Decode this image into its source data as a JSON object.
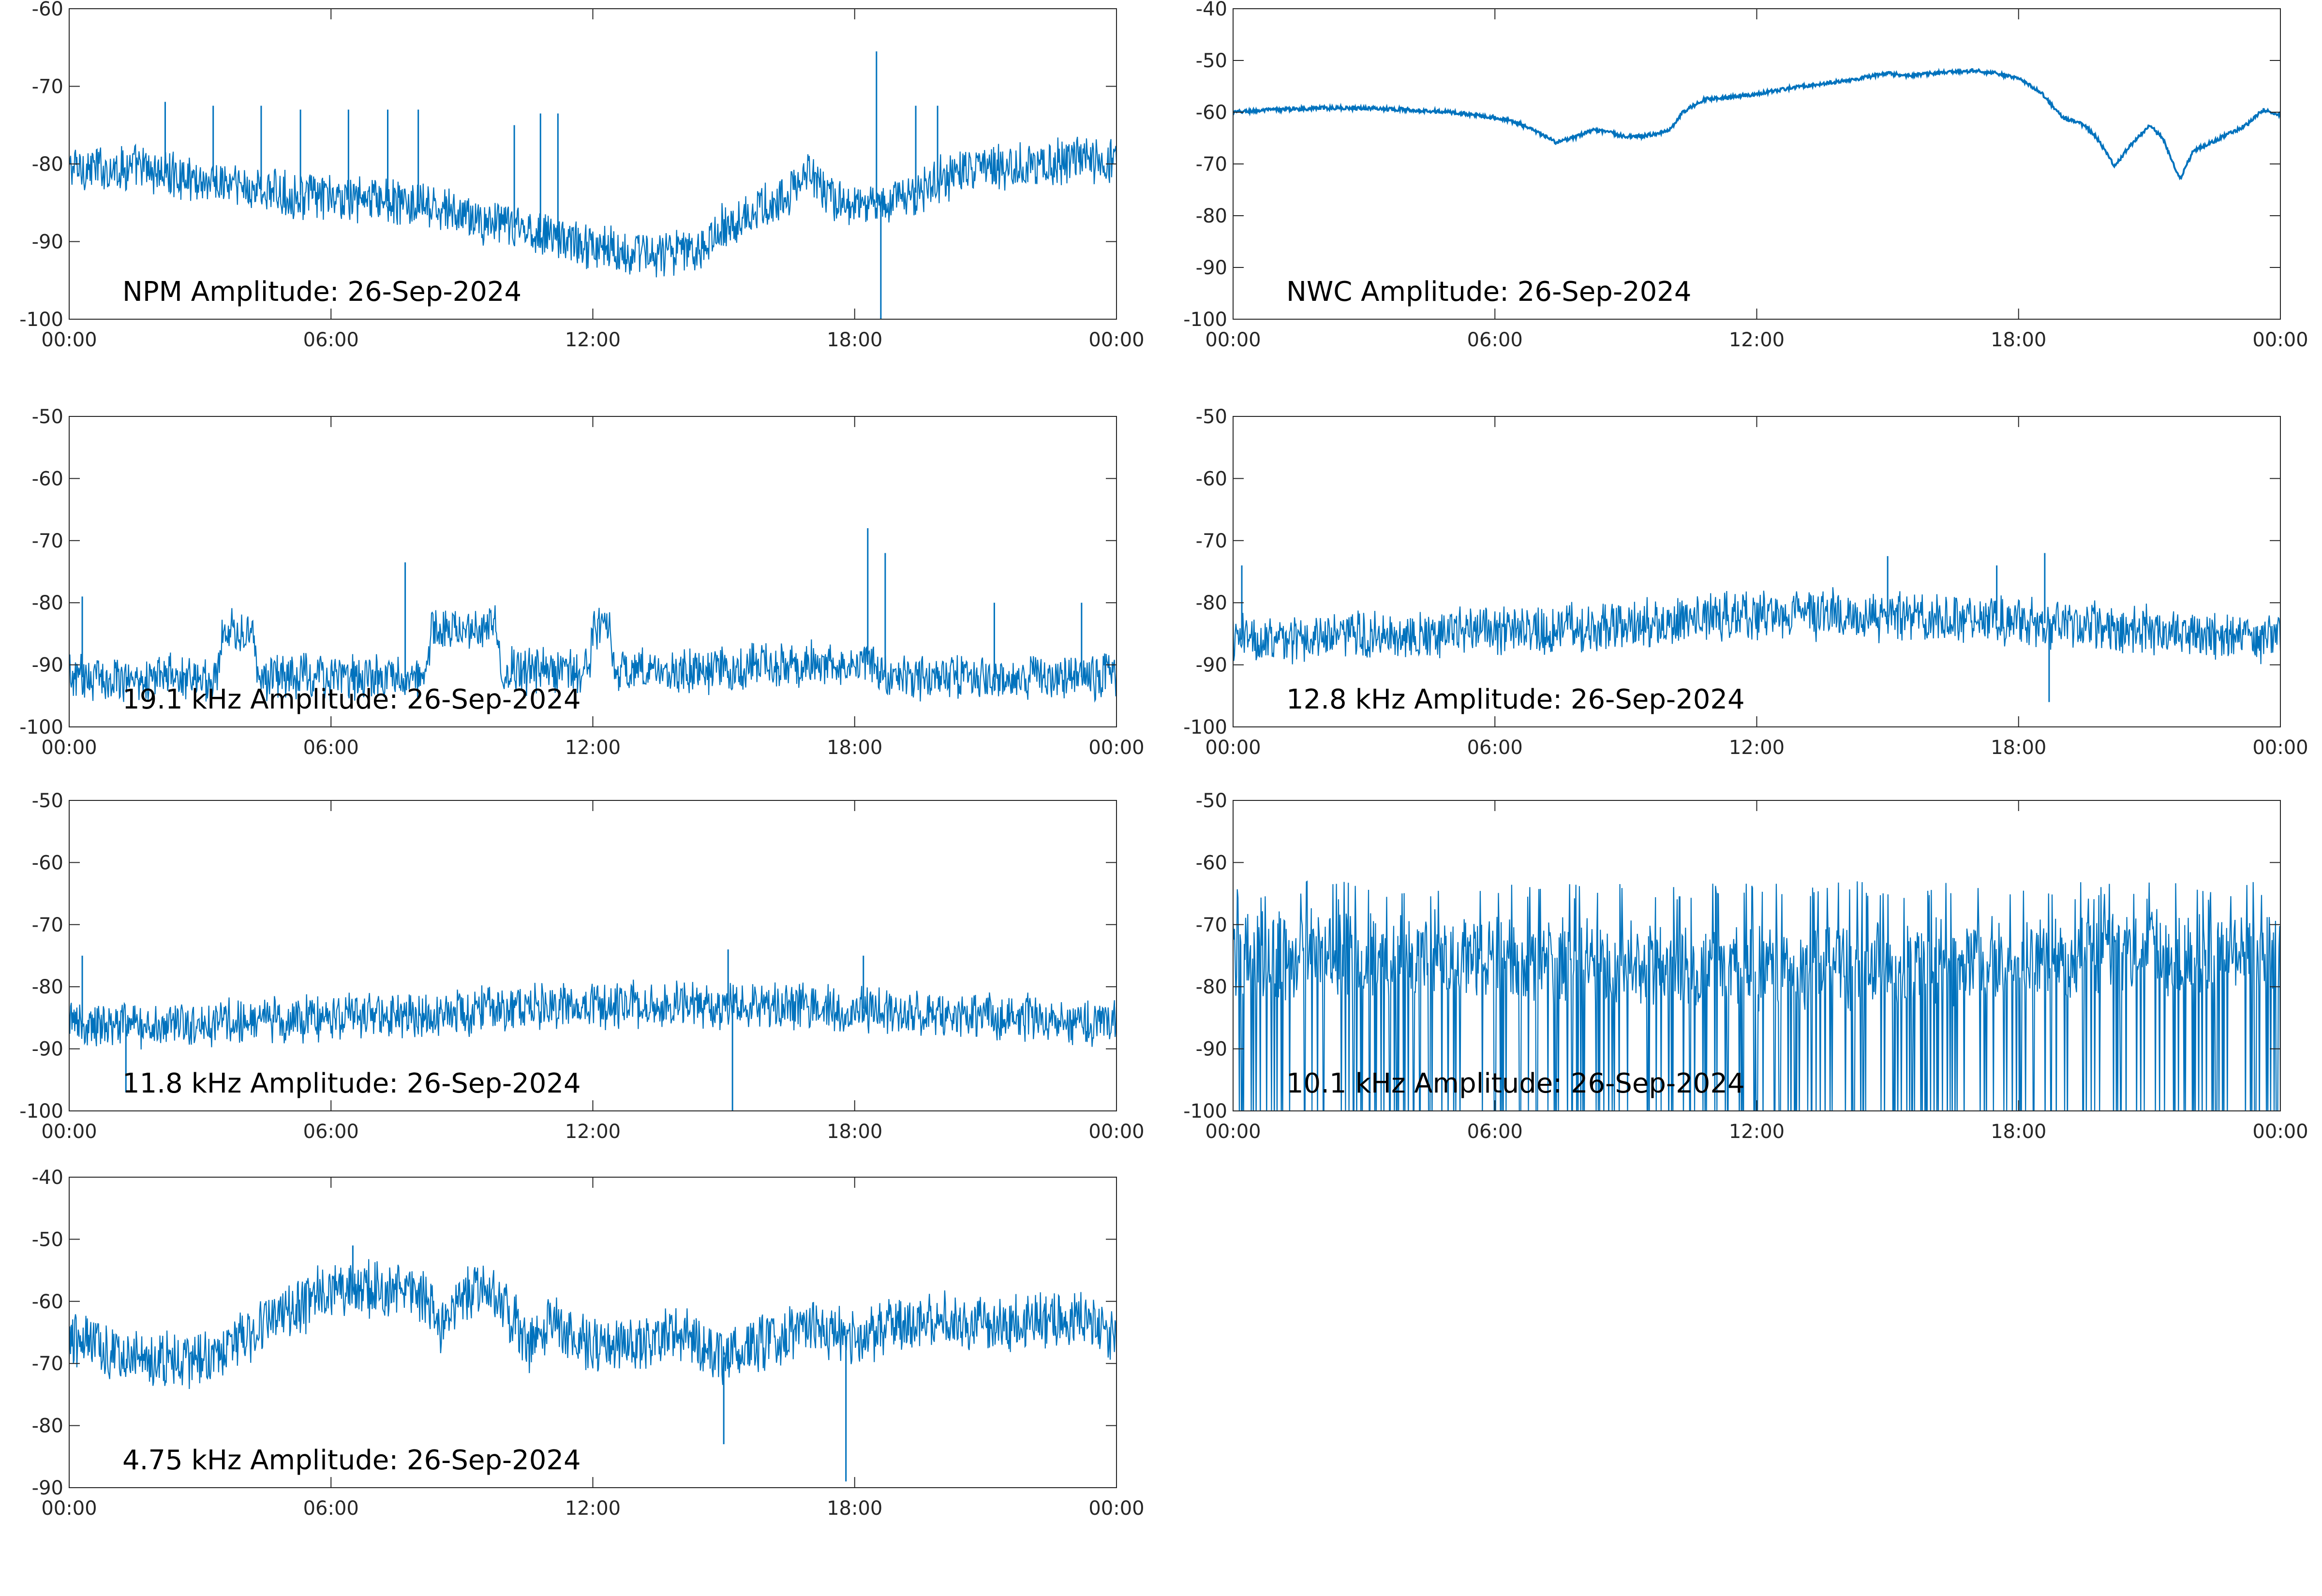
{
  "chart_data": [
    {
      "type": "line",
      "title": "NPM Amplitude: 26-Sep-2024",
      "xlabel": "",
      "ylabel": "",
      "xticks": [
        "00:00",
        "06:00",
        "12:00",
        "18:00",
        "00:00"
      ],
      "xlim_hours": [
        0,
        24
      ],
      "ylim": [
        -100,
        -60
      ],
      "yticks": [
        -60,
        -70,
        -80,
        -90,
        -100
      ],
      "grid": false,
      "color": "#0072bd",
      "series": [
        {
          "x": [
            0,
            0.5,
            1,
            1.5,
            2,
            2.5,
            3,
            3.5,
            4,
            4.5,
            5,
            5.5,
            6,
            6.5,
            7,
            7.5,
            8,
            8.5,
            9,
            9.5,
            10,
            10.5,
            11,
            11.5,
            12,
            12.5,
            13,
            13.5,
            14,
            14.5,
            15,
            15.5,
            16,
            16.5,
            17,
            17.5,
            18,
            18.5,
            19,
            19.5,
            20,
            20.5,
            21,
            21.5,
            22,
            22.5,
            23,
            23.5,
            24
          ],
          "values": [
            -80.5,
            -80.5,
            -80.5,
            -80.5,
            -81,
            -81.5,
            -82,
            -82.5,
            -83,
            -83.5,
            -84,
            -84,
            -84.5,
            -84.5,
            -84.5,
            -85,
            -85.5,
            -86,
            -86.5,
            -87.5,
            -88,
            -88.5,
            -89,
            -90,
            -90.5,
            -91,
            -91.5,
            -91.5,
            -91.5,
            -90.5,
            -88,
            -86.5,
            -85.5,
            -84,
            -81,
            -84.5,
            -85.5,
            -85,
            -84.5,
            -83.5,
            -82,
            -81,
            -80.5,
            -80.5,
            -80,
            -80,
            -79.5,
            -79.5,
            -80
          ],
          "noise": 2.6,
          "spikes": [
            [
              2.2,
              -72
            ],
            [
              3.3,
              -72.5
            ],
            [
              4.4,
              -72.5
            ],
            [
              5.3,
              -73
            ],
            [
              6.4,
              -73
            ],
            [
              7.3,
              -73
            ],
            [
              8,
              -73
            ],
            [
              10.2,
              -75
            ],
            [
              10.8,
              -73.5
            ],
            [
              11.2,
              -73.5
            ],
            [
              18.5,
              -65.5
            ],
            [
              18.6,
              -100
            ],
            [
              19.4,
              -72.5
            ],
            [
              19.9,
              -72.5
            ]
          ]
        }
      ]
    },
    {
      "type": "line",
      "title": "NWC Amplitude: 26-Sep-2024",
      "xlabel": "",
      "ylabel": "",
      "xticks": [
        "00:00",
        "06:00",
        "12:00",
        "18:00",
        "00:00"
      ],
      "xlim_hours": [
        0,
        24
      ],
      "ylim": [
        -100,
        -40
      ],
      "yticks": [
        -40,
        -50,
        -60,
        -70,
        -80,
        -90,
        -100
      ],
      "grid": false,
      "color": "#0072bd",
      "series": [
        {
          "x": [
            0,
            1,
            2,
            3,
            4,
            5,
            6,
            6.5,
            7,
            7.4,
            7.8,
            8.2,
            8.6,
            9,
            9.5,
            10,
            10.3,
            10.8,
            11.5,
            12,
            13,
            14,
            15,
            15.5,
            16,
            17,
            17.5,
            18,
            18.5,
            19,
            19.5,
            19.8,
            20.2,
            20.5,
            21,
            21.3,
            21.7,
            22,
            22.5,
            23,
            23.3,
            23.6,
            24
          ],
          "values": [
            -60,
            -59.5,
            -59.2,
            -59.2,
            -59.5,
            -60,
            -61,
            -62,
            -64,
            -65.8,
            -65,
            -63.5,
            -63.8,
            -64.8,
            -64.5,
            -63.5,
            -60,
            -57.5,
            -57,
            -56.5,
            -55,
            -54,
            -52.5,
            -53,
            -52.5,
            -52,
            -52.5,
            -53.5,
            -56,
            -61,
            -62.5,
            -65,
            -70.5,
            -67,
            -62.5,
            -65,
            -73,
            -67.5,
            -65.5,
            -63.5,
            -62,
            -59.5,
            -60.5
          ],
          "noise": 0.35,
          "spikes": []
        }
      ]
    },
    {
      "type": "line",
      "title": "19.1 kHz Amplitude: 26-Sep-2024",
      "xlabel": "",
      "ylabel": "",
      "xticks": [
        "00:00",
        "06:00",
        "12:00",
        "18:00",
        "00:00"
      ],
      "xlim_hours": [
        0,
        24
      ],
      "ylim": [
        -100,
        -50
      ],
      "yticks": [
        -50,
        -60,
        -70,
        -80,
        -90,
        -100
      ],
      "grid": false,
      "color": "#0072bd",
      "series": [
        {
          "x": [
            0,
            3.4,
            3.5,
            4.2,
            4.3,
            8.2,
            8.3,
            9.8,
            9.9,
            11.9,
            12,
            12.4,
            12.5,
            15.5,
            15.6,
            18.5,
            18.6,
            24
          ],
          "values": [
            -92,
            -92,
            -84.5,
            -84.5,
            -92,
            -92,
            -84,
            -84,
            -91,
            -91,
            -84,
            -84,
            -91,
            -91,
            -90,
            -90,
            -92,
            -92
          ],
          "noise": 3.2,
          "spikes": [
            [
              0.3,
              -79
            ],
            [
              7.7,
              -73.5
            ],
            [
              18.3,
              -68
            ],
            [
              18.7,
              -72
            ],
            [
              21.2,
              -80
            ],
            [
              23.2,
              -80
            ]
          ]
        }
      ]
    },
    {
      "type": "line",
      "title": "12.8 kHz Amplitude: 26-Sep-2024",
      "xlabel": "",
      "ylabel": "",
      "xticks": [
        "00:00",
        "06:00",
        "12:00",
        "18:00",
        "00:00"
      ],
      "xlim_hours": [
        0,
        24
      ],
      "ylim": [
        -100,
        -50
      ],
      "yticks": [
        -50,
        -60,
        -70,
        -80,
        -90,
        -100
      ],
      "grid": false,
      "color": "#0072bd",
      "series": [
        {
          "x": [
            0,
            2,
            4,
            6,
            8,
            10,
            12,
            14,
            16,
            18,
            20,
            22,
            24
          ],
          "values": [
            -86,
            -85.5,
            -85,
            -84.5,
            -84,
            -83,
            -82,
            -82,
            -82.5,
            -83,
            -84,
            -85,
            -86
          ],
          "noise": 3.5,
          "spikes": [
            [
              0.2,
              -74
            ],
            [
              15,
              -72.5
            ],
            [
              17.5,
              -74
            ],
            [
              18.6,
              -72
            ],
            [
              18.7,
              -96
            ]
          ]
        }
      ]
    },
    {
      "type": "line",
      "title": "11.8 kHz Amplitude: 26-Sep-2024",
      "xlabel": "",
      "ylabel": "",
      "xticks": [
        "00:00",
        "06:00",
        "12:00",
        "18:00",
        "00:00"
      ],
      "xlim_hours": [
        0,
        24
      ],
      "ylim": [
        -100,
        -50
      ],
      "yticks": [
        -50,
        -60,
        -70,
        -80,
        -90,
        -100
      ],
      "grid": false,
      "color": "#0072bd",
      "series": [
        {
          "x": [
            0,
            2,
            4,
            6,
            8,
            10,
            12,
            14,
            16,
            18,
            20,
            22,
            24
          ],
          "values": [
            -86,
            -86,
            -85.5,
            -85,
            -84.5,
            -83.5,
            -83,
            -83,
            -83,
            -83.5,
            -84.5,
            -85,
            -86
          ],
          "noise": 3.3,
          "spikes": [
            [
              0.3,
              -75
            ],
            [
              1.3,
              -97
            ],
            [
              15.1,
              -74
            ],
            [
              15.2,
              -100
            ],
            [
              18.2,
              -75
            ]
          ]
        }
      ]
    },
    {
      "type": "line",
      "title": "10.1 kHz Amplitude: 26-Sep-2024",
      "xlabel": "",
      "ylabel": "",
      "xticks": [
        "00:00",
        "06:00",
        "12:00",
        "18:00",
        "00:00"
      ],
      "xlim_hours": [
        0,
        24
      ],
      "ylim": [
        -100,
        -50
      ],
      "yticks": [
        -50,
        -60,
        -70,
        -80,
        -90,
        -100
      ],
      "grid": false,
      "color": "#0072bd",
      "series": [
        {
          "x": [
            0,
            4,
            8,
            12,
            16,
            20,
            24
          ],
          "values": [
            -75,
            -75,
            -76,
            -77,
            -76,
            -75,
            -74
          ],
          "noise": 6,
          "spikes": []
        }
      ]
    },
    {
      "type": "line",
      "title": "4.75 kHz Amplitude: 26-Sep-2024",
      "xlabel": "",
      "ylabel": "",
      "xticks": [
        "00:00",
        "06:00",
        "12:00",
        "18:00",
        "00:00"
      ],
      "xlim_hours": [
        0,
        24
      ],
      "ylim": [
        -90,
        -40
      ],
      "yticks": [
        -40,
        -50,
        -60,
        -70,
        -80,
        -90
      ],
      "grid": false,
      "color": "#0072bd",
      "series": [
        {
          "x": [
            0,
            1,
            2,
            3,
            4,
            5,
            6,
            7,
            8,
            8.5,
            9,
            9.5,
            10,
            10.5,
            11,
            12,
            13,
            14,
            15,
            16,
            17,
            18,
            19,
            20,
            21,
            22,
            23,
            24
          ],
          "values": [
            -66,
            -68,
            -69,
            -70,
            -66,
            -62,
            -58,
            -58,
            -58,
            -64,
            -59,
            -58,
            -61,
            -67,
            -63,
            -67,
            -67,
            -65,
            -69,
            -66,
            -64,
            -66,
            -64,
            -63,
            -64,
            -63,
            -63,
            -66
          ],
          "noise": 4,
          "spikes": [
            [
              17.8,
              -89
            ],
            [
              15,
              -83
            ],
            [
              6.5,
              -51
            ]
          ]
        }
      ]
    }
  ]
}
